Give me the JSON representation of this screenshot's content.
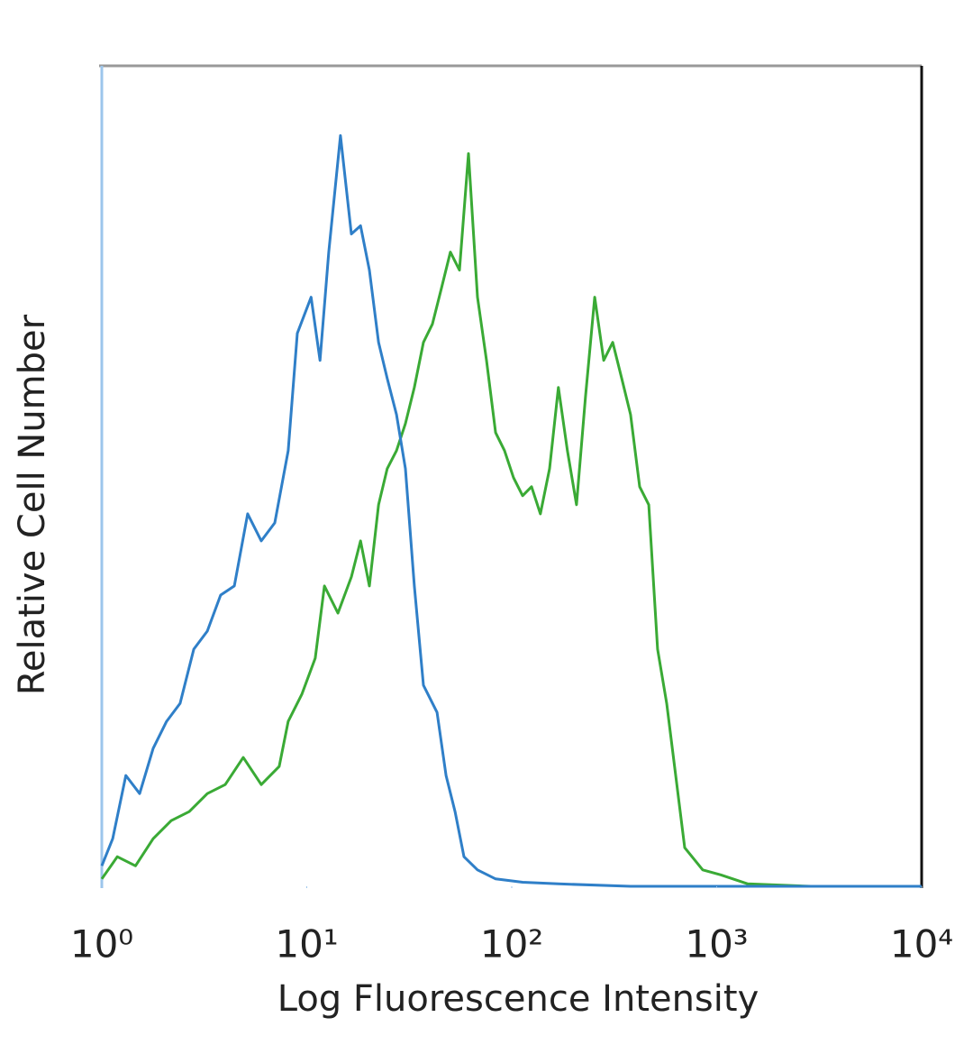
{
  "chart_data": {
    "type": "line",
    "xlabel": "Log Fluorescence Intensity",
    "ylabel": "Relative Cell Number",
    "xscale": "log",
    "xlim": [
      1,
      10000
    ],
    "xticks": [
      {
        "value": 1,
        "label": "10⁰"
      },
      {
        "value": 10,
        "label": "10¹"
      },
      {
        "value": 100,
        "label": "10²"
      },
      {
        "value": 1000,
        "label": "10³"
      },
      {
        "value": 10000,
        "label": "10⁴"
      }
    ],
    "ylim": [
      0,
      100
    ],
    "series": [
      {
        "color": "#3aaa35",
        "x": [
          1,
          1.19,
          1.46,
          1.78,
          2.18,
          2.67,
          3.27,
          4.0,
          4.9,
          6.0,
          7.34,
          8.12,
          9.46,
          11.0,
          12.2,
          14.2,
          16.5,
          18.3,
          20.2,
          22.4,
          24.7,
          27.4,
          30.3,
          33.5,
          37.1,
          41.0,
          45.4,
          50.2,
          55.6,
          61.5,
          68.1,
          75.3,
          83.4,
          92.2,
          102,
          113,
          125,
          138,
          153,
          169,
          187,
          207,
          229,
          254,
          281,
          311,
          344,
          380,
          421,
          466,
          515,
          570,
          631,
          698,
          855,
          1047,
          1418,
          2880,
          10000
        ],
        "values": [
          0.9,
          3.6,
          2.5,
          5.8,
          8.0,
          9.1,
          11.3,
          12.4,
          15.7,
          12.4,
          14.6,
          20.1,
          23.4,
          27.8,
          36.6,
          33.3,
          37.7,
          42.1,
          36.6,
          46.5,
          50.9,
          53.1,
          56.4,
          60.8,
          66.3,
          68.5,
          72.9,
          77.3,
          75.1,
          89.3,
          71.8,
          64.1,
          55.3,
          53.1,
          49.8,
          47.6,
          48.7,
          45.4,
          50.9,
          60.8,
          53.1,
          46.5,
          59.7,
          71.8,
          64.1,
          66.3,
          61.9,
          57.5,
          48.7,
          46.5,
          28.9,
          22.3,
          13.5,
          4.7,
          2.0,
          1.4,
          0.3,
          0,
          0
        ]
      },
      {
        "color": "#2f7fc8",
        "x": [
          1,
          1.13,
          1.31,
          1.53,
          1.78,
          2.07,
          2.41,
          2.81,
          3.27,
          3.8,
          4.43,
          5.15,
          6.0,
          6.98,
          8.12,
          8.99,
          10.5,
          11.6,
          12.8,
          14.6,
          16.5,
          18.3,
          20.2,
          22.4,
          24.7,
          27.4,
          30.3,
          33.5,
          37.1,
          43.2,
          47.8,
          52.9,
          58.5,
          68.1,
          83.4,
          113,
          169,
          380,
          10000
        ],
        "values": [
          2.5,
          5.8,
          13.5,
          11.3,
          16.8,
          20.1,
          22.3,
          28.9,
          31.1,
          35.5,
          36.6,
          45.4,
          42.1,
          44.3,
          53.1,
          67.4,
          71.8,
          64.1,
          77.3,
          91.5,
          79.5,
          80.5,
          75.1,
          66.3,
          61.9,
          57.5,
          50.9,
          36.6,
          24.5,
          21.2,
          13.5,
          9.1,
          3.6,
          2.0,
          0.9,
          0.5,
          0.3,
          0,
          0
        ]
      }
    ]
  }
}
